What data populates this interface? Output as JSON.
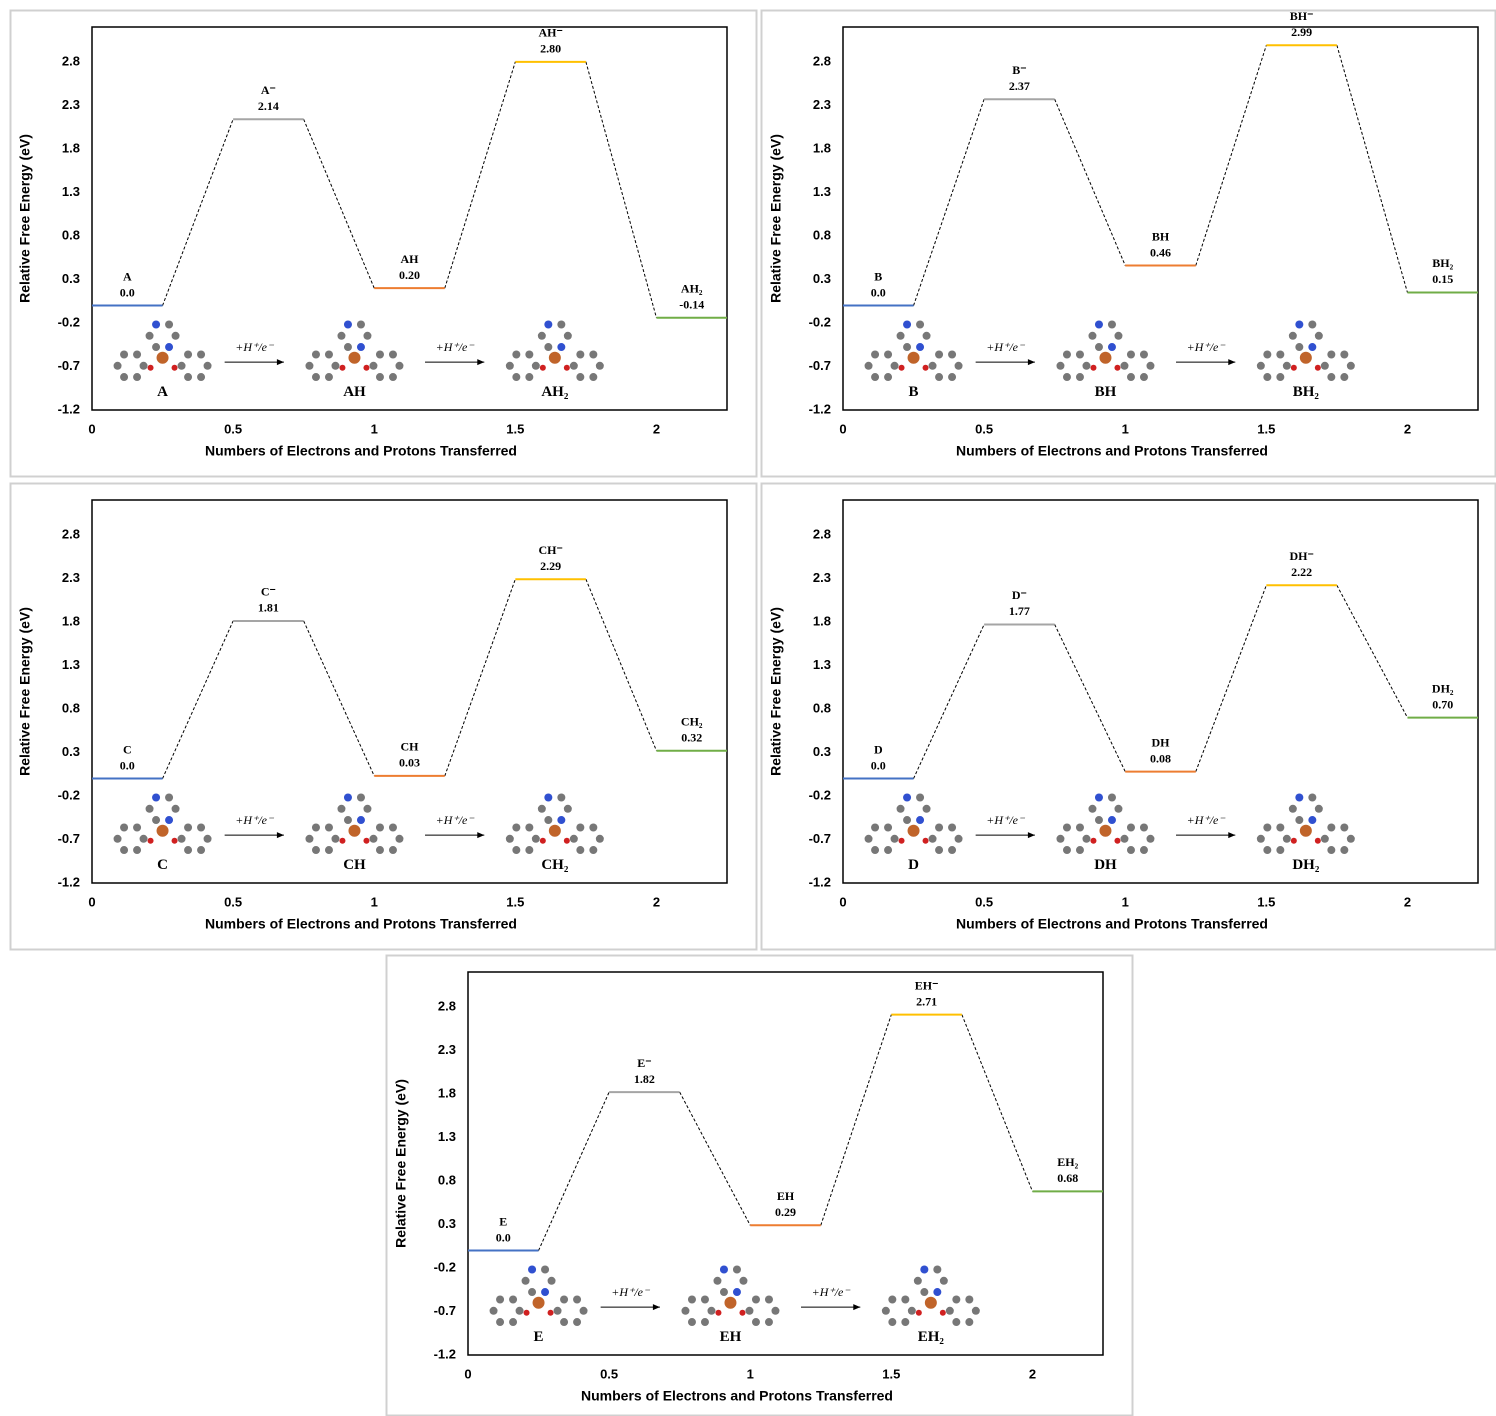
{
  "chart_data": [
    {
      "type": "energy",
      "x": [
        0,
        0.5,
        1,
        1.5,
        2
      ],
      "values": [
        0,
        2.14,
        0.2,
        2.8,
        -0.14
      ],
      "value_labels": [
        "0.0",
        "2.14",
        "0.20",
        "2.80",
        "-0.14"
      ],
      "state_labels": [
        "A",
        "A⁻",
        "AH",
        "AH⁻",
        "AH₂"
      ],
      "colors": [
        "#4472c4",
        "#a5a5a5",
        "#ed7d31",
        "#ffc000",
        "#70ad47"
      ],
      "xlim": [
        0,
        2.25
      ],
      "ylim": [
        -1.2,
        3.2
      ],
      "xticks": [
        0,
        0.5,
        1,
        1.5,
        2
      ],
      "yticks": [
        -1.2,
        -0.7,
        -0.2,
        0.3,
        0.8,
        1.3,
        1.8,
        2.3,
        2.8
      ],
      "xlabel": "Numbers of Electrons and Protons Transferred",
      "ylabel": "Relative Free Energy (eV)",
      "structure_labels": [
        "A",
        "AH",
        "AH₂"
      ],
      "arrow_labels": [
        "+H⁺/e⁻",
        "+H⁺/e⁻"
      ]
    },
    {
      "type": "energy",
      "x": [
        0,
        0.5,
        1,
        1.5,
        2
      ],
      "values": [
        0,
        2.37,
        0.46,
        2.99,
        0.15
      ],
      "value_labels": [
        "0.0",
        "2.37",
        "0.46",
        "2.99",
        "0.15"
      ],
      "state_labels": [
        "B",
        "B⁻",
        "BH",
        "BH⁻",
        "BH₂"
      ],
      "colors": [
        "#4472c4",
        "#a5a5a5",
        "#ed7d31",
        "#ffc000",
        "#70ad47"
      ],
      "xlim": [
        0,
        2.25
      ],
      "ylim": [
        -1.2,
        3.2
      ],
      "xticks": [
        0,
        0.5,
        1,
        1.5,
        2
      ],
      "yticks": [
        -1.2,
        -0.7,
        -0.2,
        0.3,
        0.8,
        1.3,
        1.8,
        2.3,
        2.8
      ],
      "xlabel": "Numbers of Electrons and Protons Transferred",
      "ylabel": "Relative Free Energy (eV)",
      "structure_labels": [
        "B",
        "BH",
        "BH₂"
      ],
      "arrow_labels": [
        "+H⁺/e⁻",
        "+H⁺/e⁻"
      ]
    },
    {
      "type": "energy",
      "x": [
        0,
        0.5,
        1,
        1.5,
        2
      ],
      "values": [
        0,
        1.81,
        0.03,
        2.29,
        0.32
      ],
      "value_labels": [
        "0.0",
        "1.81",
        "0.03",
        "2.29",
        "0.32"
      ],
      "state_labels": [
        "C",
        "C⁻",
        "CH",
        "CH⁻",
        "CH₂"
      ],
      "colors": [
        "#4472c4",
        "#a5a5a5",
        "#ed7d31",
        "#ffc000",
        "#70ad47"
      ],
      "xlim": [
        0,
        2.25
      ],
      "ylim": [
        -1.2,
        3.2
      ],
      "xticks": [
        0,
        0.5,
        1,
        1.5,
        2
      ],
      "yticks": [
        -1.2,
        -0.7,
        -0.2,
        0.3,
        0.8,
        1.3,
        1.8,
        2.3,
        2.8
      ],
      "xlabel": "Numbers of Electrons and Protons Transferred",
      "ylabel": "Relative Free Energy (eV)",
      "structure_labels": [
        "C",
        "CH",
        "CH₂"
      ],
      "arrow_labels": [
        "+H⁺/e⁻",
        "+H⁺/e⁻"
      ]
    },
    {
      "type": "energy",
      "x": [
        0,
        0.5,
        1,
        1.5,
        2
      ],
      "values": [
        0,
        1.77,
        0.08,
        2.22,
        0.7
      ],
      "value_labels": [
        "0.0",
        "1.77",
        "0.08",
        "2.22",
        "0.70"
      ],
      "state_labels": [
        "D",
        "D⁻",
        "DH",
        "DH⁻",
        "DH₂"
      ],
      "colors": [
        "#4472c4",
        "#a5a5a5",
        "#ed7d31",
        "#ffc000",
        "#70ad47"
      ],
      "xlim": [
        0,
        2.25
      ],
      "ylim": [
        -1.2,
        3.2
      ],
      "xticks": [
        0,
        0.5,
        1,
        1.5,
        2
      ],
      "yticks": [
        -1.2,
        -0.7,
        -0.2,
        0.3,
        0.8,
        1.3,
        1.8,
        2.3,
        2.8
      ],
      "xlabel": "Numbers of Electrons and Protons Transferred",
      "ylabel": "Relative Free Energy (eV)",
      "structure_labels": [
        "D",
        "DH",
        "DH₂"
      ],
      "arrow_labels": [
        "+H⁺/e⁻",
        "+H⁺/e⁻"
      ]
    },
    {
      "type": "energy",
      "x": [
        0,
        0.5,
        1,
        1.5,
        2
      ],
      "values": [
        0,
        1.82,
        0.29,
        2.71,
        0.68
      ],
      "value_labels": [
        "0.0",
        "1.82",
        "0.29",
        "2.71",
        "0.68"
      ],
      "state_labels": [
        "E",
        "E⁻",
        "EH",
        "EH⁻",
        "EH₂"
      ],
      "colors": [
        "#4472c4",
        "#a5a5a5",
        "#ed7d31",
        "#ffc000",
        "#70ad47"
      ],
      "xlim": [
        0,
        2.25
      ],
      "ylim": [
        -1.2,
        3.2
      ],
      "xticks": [
        0,
        0.5,
        1,
        1.5,
        2
      ],
      "yticks": [
        -1.2,
        -0.7,
        -0.2,
        0.3,
        0.8,
        1.3,
        1.8,
        2.3,
        2.8
      ],
      "xlabel": "Numbers of Electrons and Protons Transferred",
      "ylabel": "Relative Free Energy (eV)",
      "structure_labels": [
        "E",
        "EH",
        "EH₂"
      ],
      "arrow_labels": [
        "+H⁺/e⁻",
        "+H⁺/e⁻"
      ]
    }
  ]
}
